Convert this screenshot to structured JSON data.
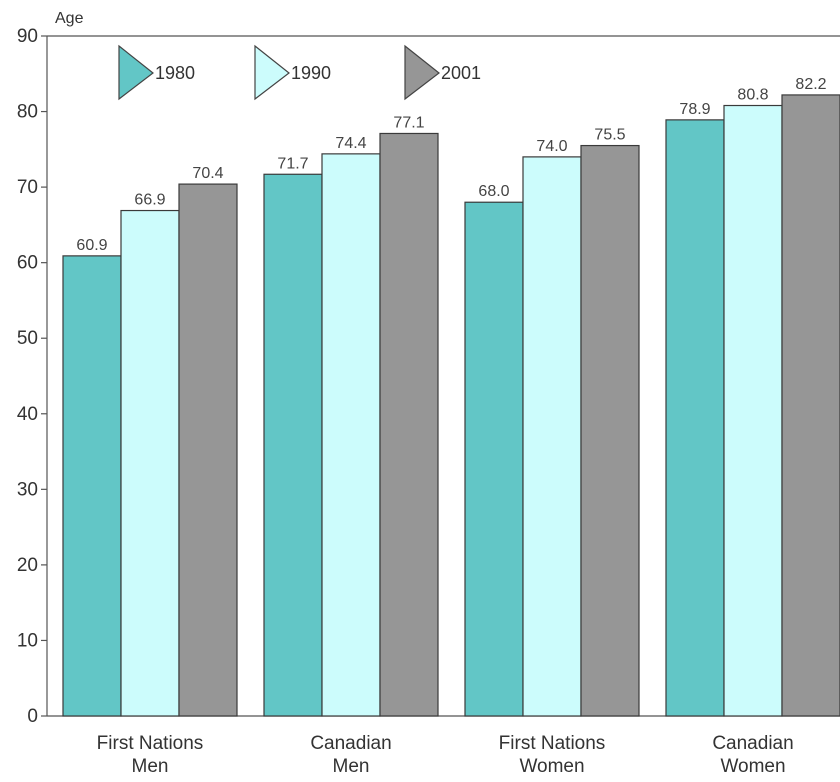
{
  "chart_data": {
    "type": "bar",
    "ylabel": "Age",
    "ylim": [
      0,
      90
    ],
    "yticks": [
      0,
      10,
      20,
      30,
      40,
      50,
      60,
      70,
      80,
      90
    ],
    "categories": [
      [
        "First Nations",
        "Men"
      ],
      [
        "Canadian",
        "Men"
      ],
      [
        "First Nations",
        "Women"
      ],
      [
        "Canadian",
        "Women"
      ]
    ],
    "series": [
      {
        "name": "1980",
        "color": "#62c6c6",
        "values": [
          60.9,
          71.7,
          68.0,
          78.9
        ]
      },
      {
        "name": "1990",
        "color": "#ccfcfc",
        "values": [
          66.9,
          74.4,
          74.0,
          80.8
        ]
      },
      {
        "name": "2001",
        "color": "#969696",
        "values": [
          70.4,
          77.1,
          75.5,
          82.2
        ]
      }
    ],
    "grid": false,
    "legend_position": "top-left"
  }
}
